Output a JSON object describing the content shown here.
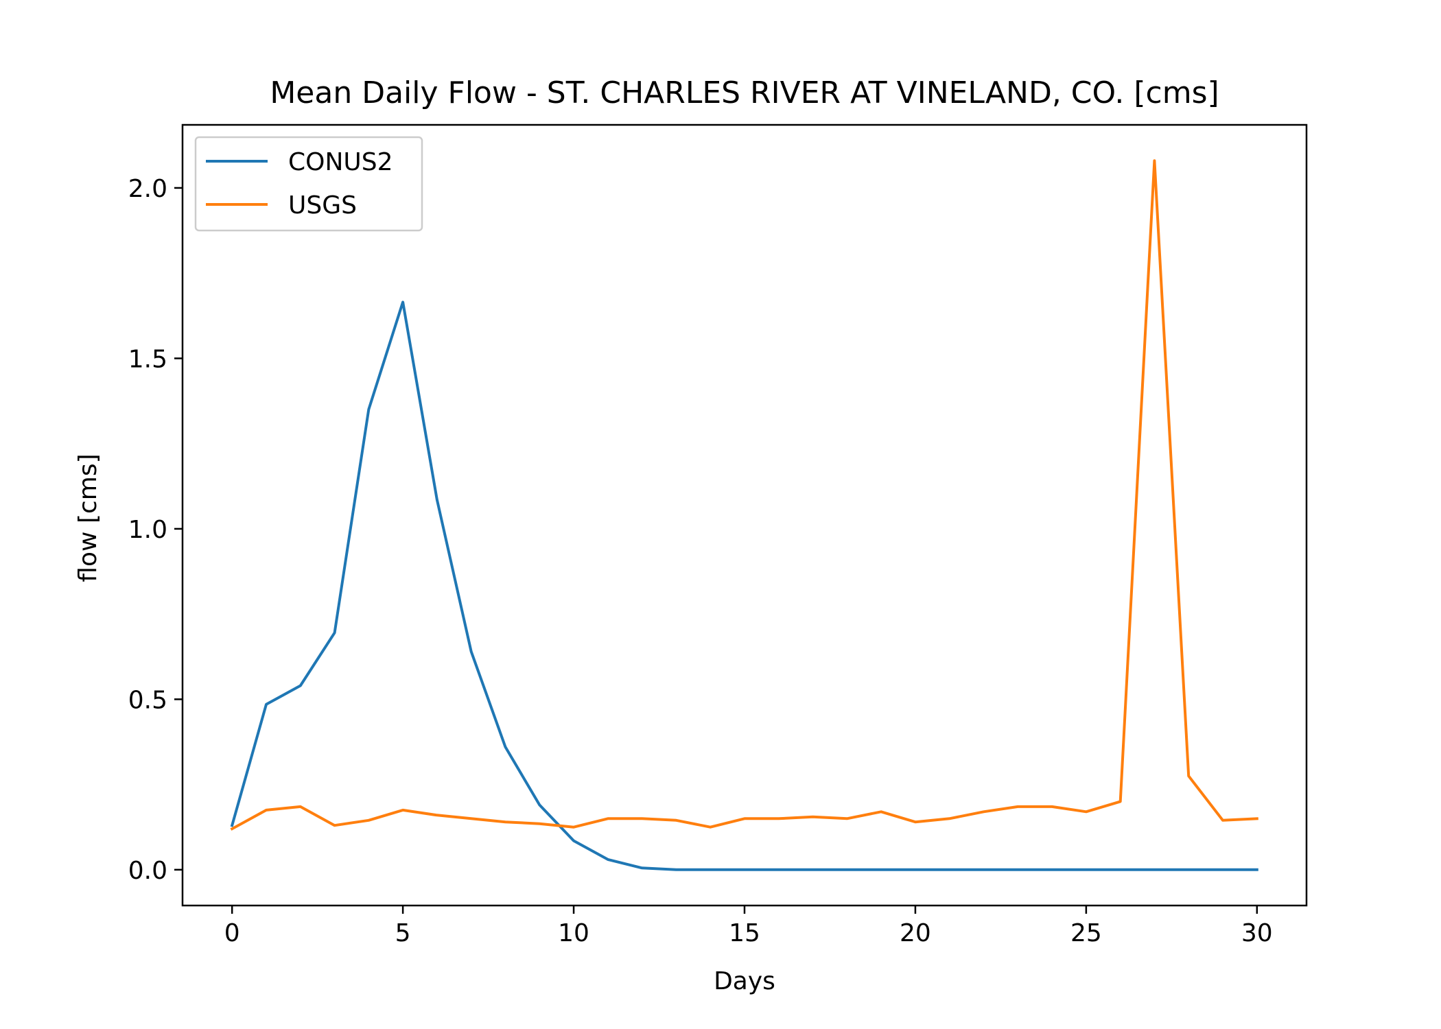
{
  "chart_data": {
    "type": "line",
    "title": "Mean Daily Flow - ST. CHARLES RIVER AT VINELAND, CO. [cms]",
    "xlabel": "Days",
    "ylabel": "flow [cms]",
    "xlim": [
      -1.45,
      31.45
    ],
    "ylim": [
      -0.105,
      2.185
    ],
    "xticks": [
      0,
      5,
      10,
      15,
      20,
      25,
      30
    ],
    "yticks": [
      0.0,
      0.5,
      1.0,
      1.5,
      2.0
    ],
    "ytick_labels": [
      "0.0",
      "0.5",
      "1.0",
      "1.5",
      "2.0"
    ],
    "grid": false,
    "legend_position": "upper-left",
    "x": [
      0,
      1,
      2,
      3,
      4,
      5,
      6,
      7,
      8,
      9,
      10,
      11,
      12,
      13,
      14,
      15,
      16,
      17,
      18,
      19,
      20,
      21,
      22,
      23,
      24,
      25,
      26,
      27,
      28,
      29,
      30
    ],
    "series": [
      {
        "name": "CONUS2",
        "color": "#1f77b4",
        "values": [
          0.13,
          0.485,
          0.54,
          0.695,
          1.35,
          1.665,
          1.085,
          0.64,
          0.36,
          0.19,
          0.085,
          0.03,
          0.005,
          0.0,
          0.0,
          0.0,
          0.0,
          0.0,
          0.0,
          0.0,
          0.0,
          0.0,
          0.0,
          0.0,
          0.0,
          0.0,
          0.0,
          0.0,
          0.0,
          0.0,
          0.0
        ]
      },
      {
        "name": "USGS",
        "color": "#ff7f0e",
        "values": [
          0.12,
          0.175,
          0.185,
          0.13,
          0.145,
          0.175,
          0.16,
          0.15,
          0.14,
          0.135,
          0.125,
          0.15,
          0.15,
          0.145,
          0.125,
          0.15,
          0.15,
          0.155,
          0.15,
          0.17,
          0.14,
          0.15,
          0.17,
          0.185,
          0.185,
          0.17,
          0.2,
          2.08,
          0.275,
          0.145,
          0.15
        ]
      }
    ]
  }
}
